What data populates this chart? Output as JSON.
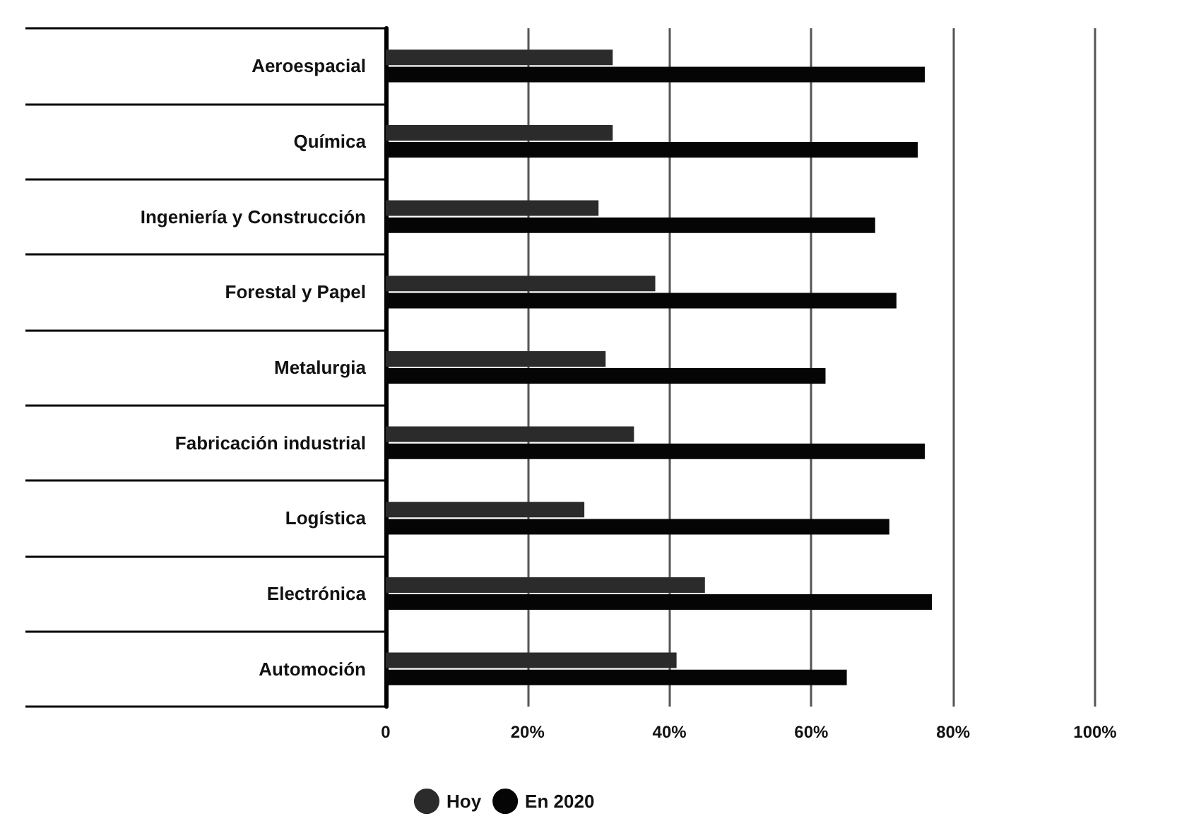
{
  "chart_data": {
    "type": "bar",
    "orientation": "horizontal",
    "categories": [
      "Aeroespacial",
      "Química",
      "Ingeniería y Construcción",
      "Forestal y Papel",
      "Metalurgia",
      "Fabricación industrial",
      "Logística",
      "Electrónica",
      "Automoción"
    ],
    "series": [
      {
        "name": "Hoy",
        "color": "#2b2b2b",
        "values": [
          32,
          32,
          30,
          38,
          31,
          35,
          28,
          45,
          41
        ]
      },
      {
        "name": "En 2020",
        "color": "#050505",
        "values": [
          76,
          75,
          69,
          72,
          62,
          76,
          71,
          77,
          65
        ]
      }
    ],
    "xlim": [
      0,
      100
    ],
    "xticks": [
      {
        "value": 0,
        "label": "0"
      },
      {
        "value": 20,
        "label": "20%"
      },
      {
        "value": 40,
        "label": "40%"
      },
      {
        "value": 60,
        "label": "60%"
      },
      {
        "value": 80,
        "label": "80%"
      },
      {
        "value": 100,
        "label": "100%"
      }
    ],
    "grid": "x",
    "legend": "bottom",
    "marker": "circle"
  }
}
